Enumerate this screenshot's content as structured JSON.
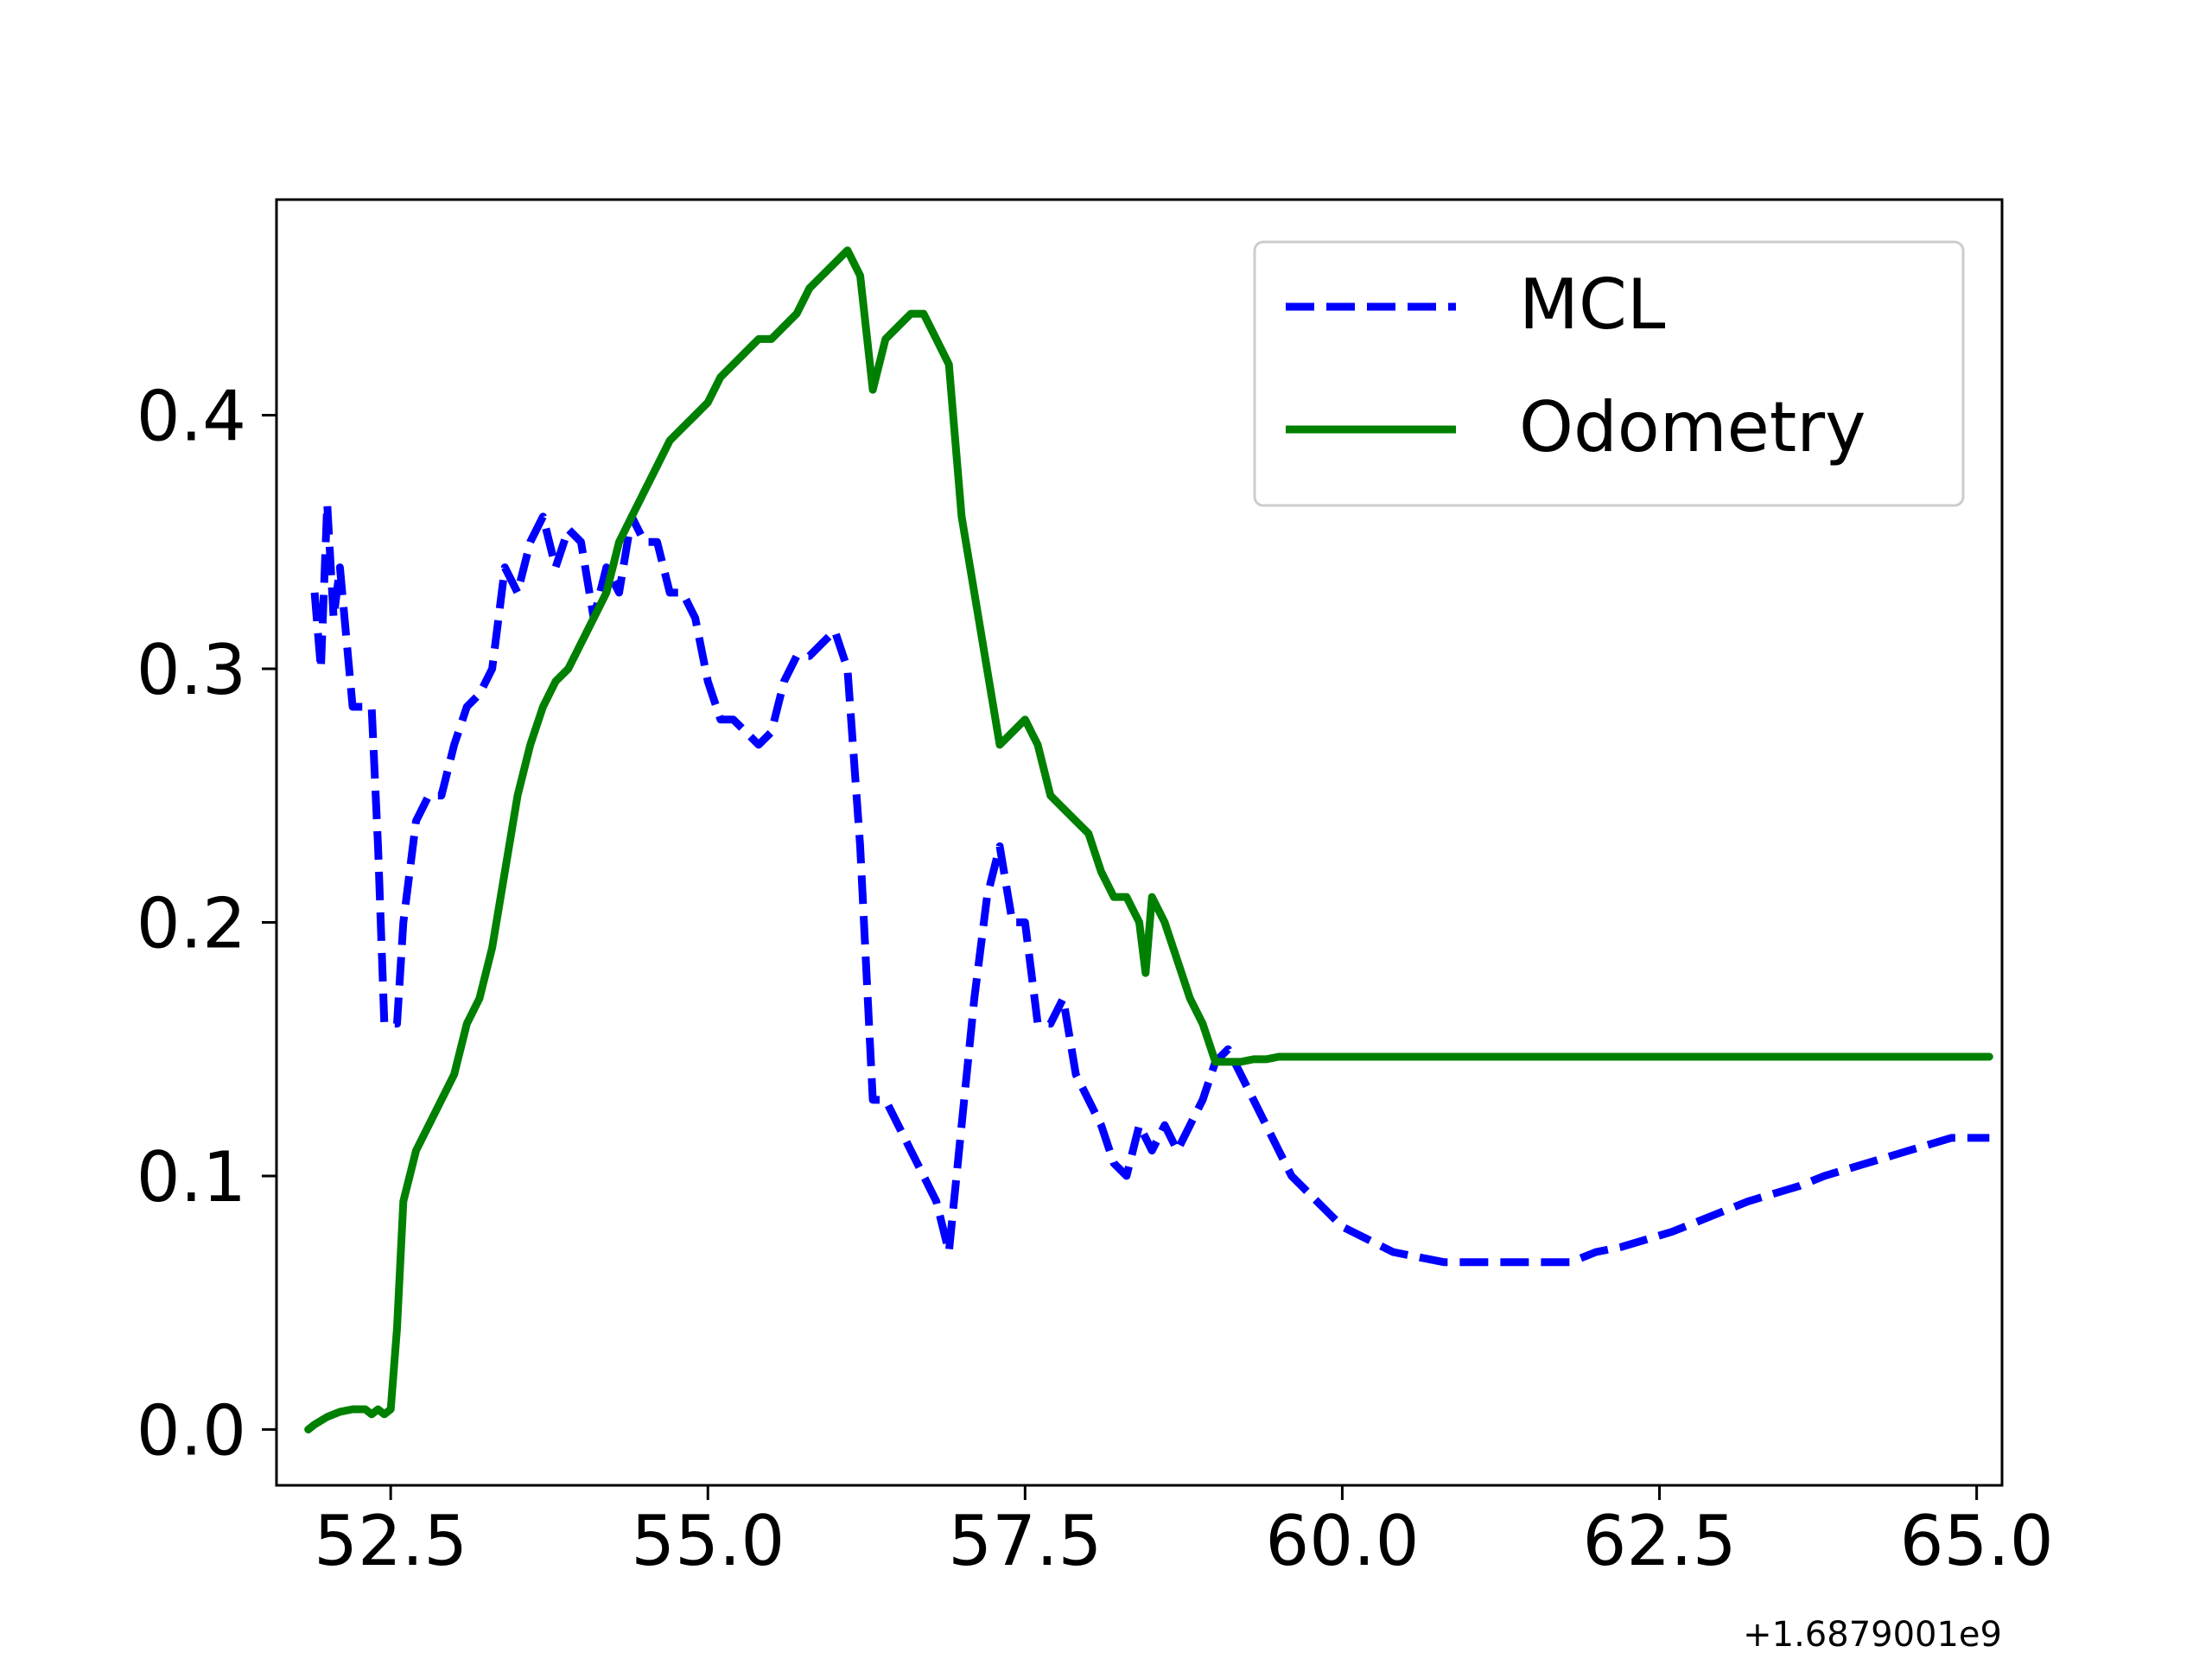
{
  "chart_data": {
    "type": "line",
    "title": "",
    "xlabel": "",
    "ylabel": "",
    "x_offset_label": "+1.6879001e9",
    "xlim": [
      51.6,
      65.2
    ],
    "ylim": [
      -0.022,
      0.485
    ],
    "xticks": [
      52.5,
      55.0,
      57.5,
      60.0,
      62.5,
      65.0
    ],
    "xtick_labels": [
      "52.5",
      "55.0",
      "57.5",
      "60.0",
      "62.5",
      "65.0"
    ],
    "yticks": [
      0.0,
      0.1,
      0.2,
      0.3,
      0.4
    ],
    "ytick_labels": [
      "0.0",
      "0.1",
      "0.2",
      "0.3",
      "0.4"
    ],
    "grid": false,
    "legend_position": "top-right",
    "series": [
      {
        "name": "MCL",
        "color": "#0000ff",
        "style": "dashed",
        "x": [
          51.9,
          51.95,
          52.0,
          52.05,
          52.1,
          52.2,
          52.3,
          52.35,
          52.4,
          52.45,
          52.55,
          52.6,
          52.7,
          52.8,
          52.9,
          53.0,
          53.1,
          53.2,
          53.3,
          53.4,
          53.5,
          53.6,
          53.7,
          53.8,
          53.9,
          54.0,
          54.1,
          54.2,
          54.3,
          54.4,
          54.5,
          54.6,
          54.7,
          54.8,
          54.9,
          55.0,
          55.1,
          55.2,
          55.3,
          55.4,
          55.5,
          55.6,
          55.7,
          55.8,
          55.9,
          56.0,
          56.1,
          56.2,
          56.3,
          56.4,
          56.5,
          56.6,
          56.7,
          56.8,
          56.9,
          57.0,
          57.1,
          57.2,
          57.3,
          57.4,
          57.5,
          57.6,
          57.7,
          57.8,
          57.9,
          58.0,
          58.1,
          58.2,
          58.3,
          58.4,
          58.5,
          58.6,
          58.7,
          58.8,
          58.9,
          59.0,
          59.1,
          59.2,
          59.3,
          59.4,
          59.5,
          59.6,
          59.7,
          59.8,
          59.9,
          60.0,
          60.2,
          60.4,
          60.6,
          60.8,
          61.0,
          61.2,
          61.4,
          61.6,
          61.8,
          62.0,
          62.2,
          62.4,
          62.6,
          62.8,
          63.0,
          63.2,
          63.4,
          63.6,
          63.8,
          64.0,
          64.2,
          64.4,
          64.6,
          64.8,
          65.0,
          65.1
        ],
        "y": [
          0.33,
          0.3,
          0.365,
          0.32,
          0.34,
          0.285,
          0.285,
          0.285,
          0.23,
          0.16,
          0.16,
          0.2,
          0.24,
          0.25,
          0.25,
          0.27,
          0.285,
          0.29,
          0.3,
          0.34,
          0.33,
          0.35,
          0.36,
          0.34,
          0.355,
          0.35,
          0.32,
          0.34,
          0.33,
          0.36,
          0.35,
          0.35,
          0.33,
          0.33,
          0.32,
          0.295,
          0.28,
          0.28,
          0.275,
          0.27,
          0.275,
          0.295,
          0.305,
          0.305,
          0.31,
          0.315,
          0.3,
          0.23,
          0.13,
          0.13,
          0.12,
          0.11,
          0.1,
          0.09,
          0.07,
          0.12,
          0.17,
          0.21,
          0.23,
          0.2,
          0.2,
          0.16,
          0.16,
          0.17,
          0.14,
          0.13,
          0.12,
          0.105,
          0.1,
          0.12,
          0.11,
          0.12,
          0.11,
          0.12,
          0.13,
          0.145,
          0.15,
          0.14,
          0.13,
          0.12,
          0.11,
          0.1,
          0.095,
          0.09,
          0.085,
          0.08,
          0.075,
          0.07,
          0.068,
          0.066,
          0.066,
          0.066,
          0.066,
          0.066,
          0.066,
          0.07,
          0.072,
          0.075,
          0.078,
          0.082,
          0.086,
          0.09,
          0.093,
          0.096,
          0.1,
          0.103,
          0.106,
          0.109,
          0.112,
          0.115,
          0.115,
          0.115
        ]
      },
      {
        "name": "Odometry",
        "color": "#008000",
        "style": "solid",
        "x": [
          51.85,
          51.9,
          52.0,
          52.1,
          52.2,
          52.3,
          52.35,
          52.4,
          52.45,
          52.5,
          52.55,
          52.6,
          52.7,
          52.8,
          52.9,
          53.0,
          53.1,
          53.2,
          53.3,
          53.4,
          53.5,
          53.6,
          53.7,
          53.8,
          53.9,
          54.0,
          54.1,
          54.2,
          54.3,
          54.4,
          54.5,
          54.6,
          54.7,
          54.8,
          54.9,
          55.0,
          55.1,
          55.2,
          55.3,
          55.4,
          55.5,
          55.6,
          55.7,
          55.8,
          55.9,
          56.0,
          56.1,
          56.2,
          56.3,
          56.4,
          56.5,
          56.6,
          56.7,
          56.8,
          56.9,
          57.0,
          57.1,
          57.2,
          57.3,
          57.4,
          57.5,
          57.6,
          57.7,
          57.8,
          57.9,
          58.0,
          58.1,
          58.2,
          58.3,
          58.4,
          58.45,
          58.5,
          58.6,
          58.7,
          58.8,
          58.9,
          59.0,
          59.1,
          59.2,
          59.3,
          59.4,
          59.5,
          59.6,
          59.7,
          59.8,
          60.0,
          60.5,
          61.0,
          61.5,
          62.0,
          62.5,
          63.0,
          63.5,
          64.0,
          64.5,
          65.0,
          65.1
        ],
        "y": [
          0.0,
          0.002,
          0.005,
          0.007,
          0.008,
          0.008,
          0.006,
          0.008,
          0.006,
          0.008,
          0.04,
          0.09,
          0.11,
          0.12,
          0.13,
          0.14,
          0.16,
          0.17,
          0.19,
          0.22,
          0.25,
          0.27,
          0.285,
          0.295,
          0.3,
          0.31,
          0.32,
          0.33,
          0.35,
          0.36,
          0.37,
          0.38,
          0.39,
          0.395,
          0.4,
          0.405,
          0.415,
          0.42,
          0.425,
          0.43,
          0.43,
          0.435,
          0.44,
          0.45,
          0.455,
          0.46,
          0.465,
          0.455,
          0.41,
          0.43,
          0.435,
          0.44,
          0.44,
          0.43,
          0.42,
          0.36,
          0.33,
          0.3,
          0.27,
          0.275,
          0.28,
          0.27,
          0.25,
          0.245,
          0.24,
          0.235,
          0.22,
          0.21,
          0.21,
          0.2,
          0.18,
          0.21,
          0.2,
          0.185,
          0.17,
          0.16,
          0.145,
          0.145,
          0.145,
          0.146,
          0.146,
          0.147,
          0.147,
          0.147,
          0.147,
          0.147,
          0.147,
          0.147,
          0.147,
          0.147,
          0.147,
          0.147,
          0.147,
          0.147,
          0.147,
          0.147,
          0.147
        ]
      }
    ]
  }
}
